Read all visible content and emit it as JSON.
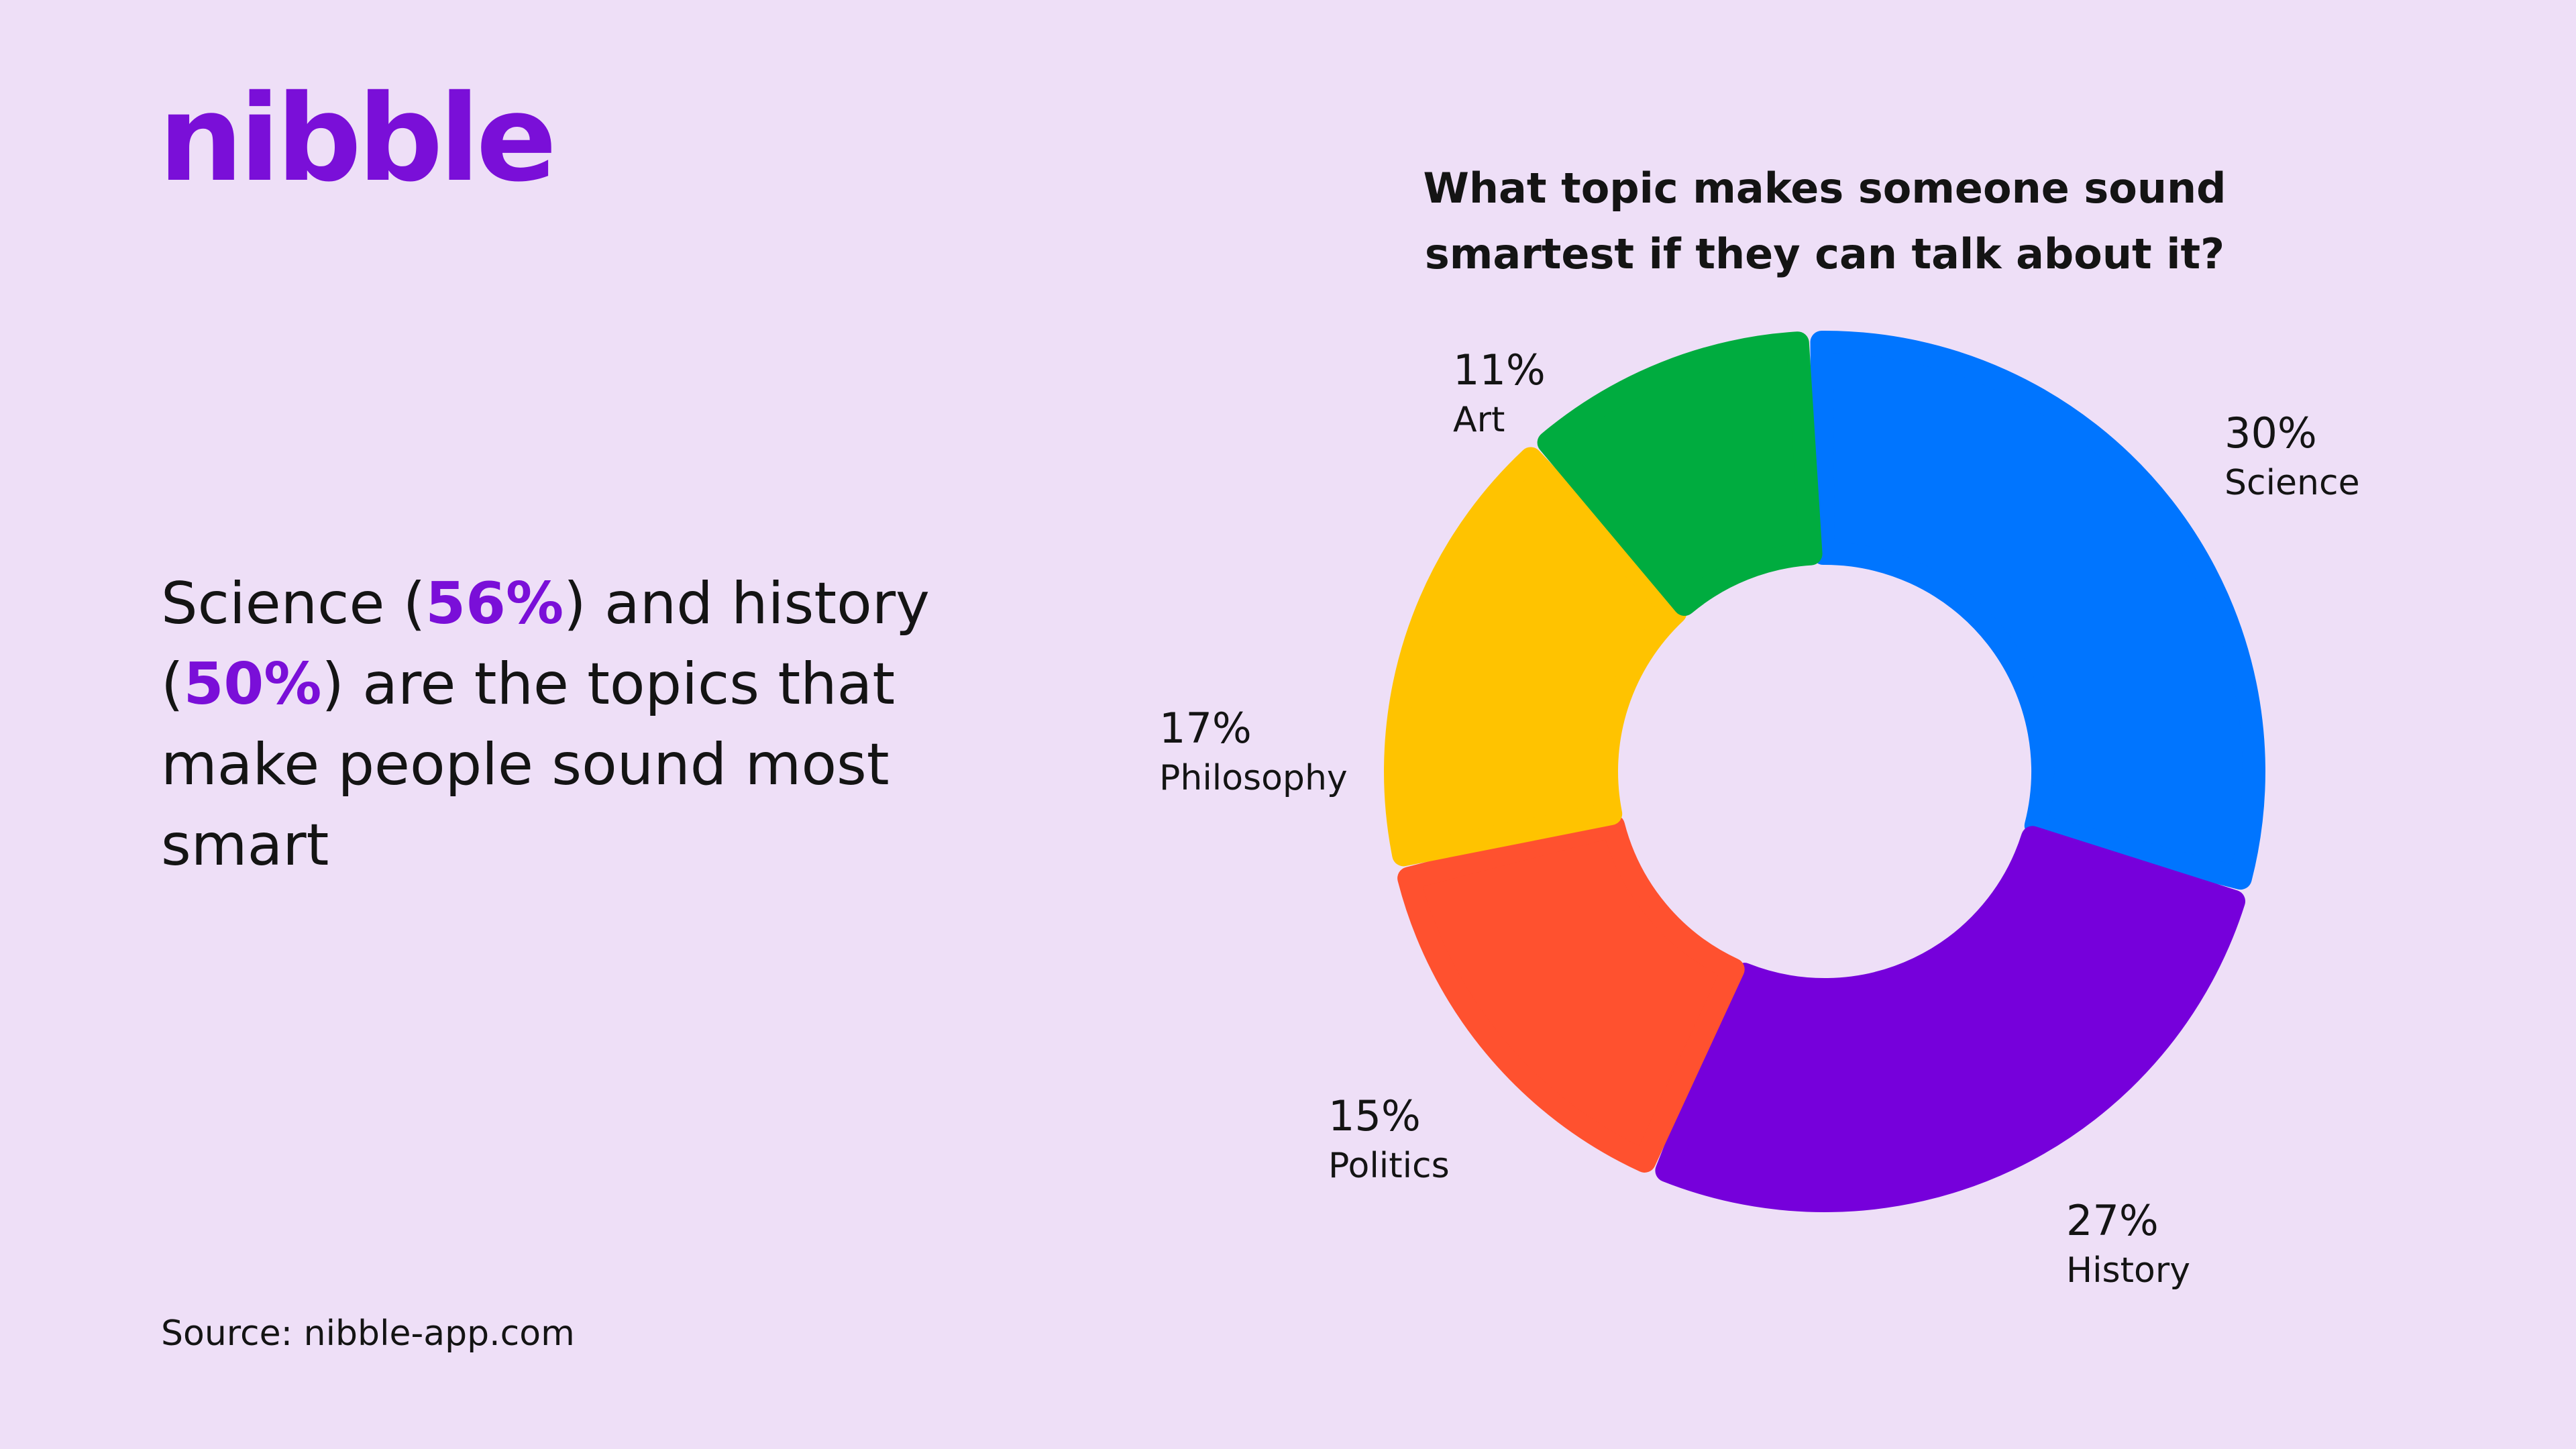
{
  "brand": {
    "logo_text": "nibble",
    "color": "#7a0fd8"
  },
  "headline": {
    "part1": "Science (",
    "value1": "56%",
    "part2": ") and history (",
    "value2": "50%",
    "part3": ") are the topics that make people sound most smart"
  },
  "source": "Source: nibble-app.com",
  "chart_data": {
    "type": "pie",
    "style": "donut",
    "title": "What topic makes someone sound smartest if they can talk about it?",
    "unit": "%",
    "slices": [
      {
        "label": "Science",
        "value": 30,
        "display": "30%",
        "color": "#0075ff"
      },
      {
        "label": "History",
        "value": 27,
        "display": "27%",
        "color": "#7600db"
      },
      {
        "label": "Politics",
        "value": 15,
        "display": "15%",
        "color": "#ff512f"
      },
      {
        "label": "Philosophy",
        "value": 17,
        "display": "17%",
        "color": "#ffc300"
      },
      {
        "label": "Art",
        "value": 11,
        "display": "11%",
        "color": "#00ac3f"
      }
    ],
    "legend": "none",
    "grid": false
  }
}
